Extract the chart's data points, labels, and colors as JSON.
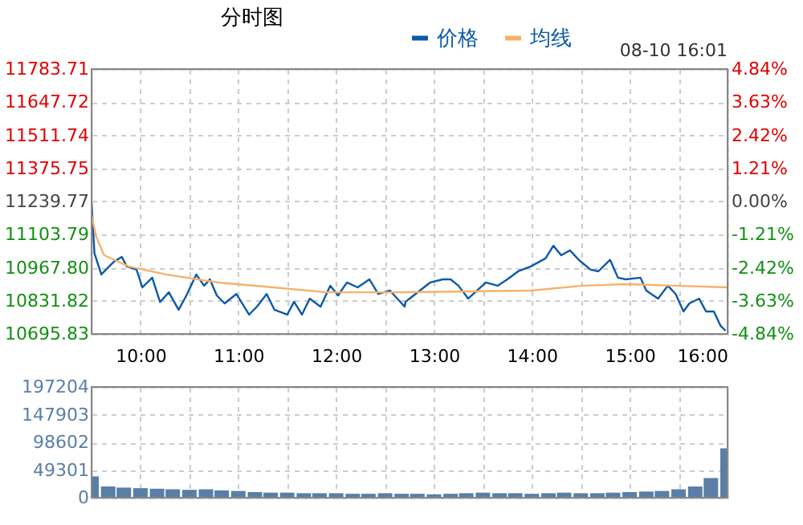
{
  "chart_data": [
    {
      "type": "line",
      "title": "分时图",
      "annotations": [
        "08-10 16:01"
      ],
      "legend": "top",
      "grid": true,
      "xlim": [
        9.5,
        16
      ],
      "xticks": [
        {
          "value": 10,
          "label": "10:00"
        },
        {
          "value": 10.5,
          "label": null
        },
        {
          "value": 11,
          "label": "11:00"
        },
        {
          "value": 11.5,
          "label": null
        },
        {
          "value": 12,
          "label": "12:00"
        },
        {
          "value": 12.5,
          "label": null
        },
        {
          "value": 13,
          "label": "13:00"
        },
        {
          "value": 13.5,
          "label": null
        },
        {
          "value": 14,
          "label": "14:00"
        },
        {
          "value": 14.5,
          "label": null
        },
        {
          "value": 15,
          "label": "15:00"
        },
        {
          "value": 15.5,
          "label": null
        },
        {
          "value": 16,
          "label": "16:00"
        }
      ],
      "ylim": [
        10695.83,
        11783.71
      ],
      "yticks": [
        {
          "value": 10695.83,
          "label": "10695.83"
        },
        {
          "value": 10831.82,
          "label": "10831.82"
        },
        {
          "value": 10967.8,
          "label": "10967.80"
        },
        {
          "value": 11103.79,
          "label": "11103.79"
        },
        {
          "value": 11239.77,
          "label": "11239.77"
        },
        {
          "value": 11375.75,
          "label": "11375.75"
        },
        {
          "value": 11511.74,
          "label": "11511.74"
        },
        {
          "value": 11647.72,
          "label": "11647.72"
        },
        {
          "value": 11783.71,
          "label": "11783.71"
        }
      ],
      "y2lim": [
        -4.84,
        4.84
      ],
      "y2ticks": [
        {
          "value": -4.84,
          "label": "-4.84%"
        },
        {
          "value": -3.63,
          "label": "-3.63%"
        },
        {
          "value": -2.42,
          "label": "-2.42%"
        },
        {
          "value": -1.21,
          "label": "-1.21%"
        },
        {
          "value": 0,
          "label": "0.00%"
        },
        {
          "value": 1.21,
          "label": "1.21%"
        },
        {
          "value": 2.42,
          "label": "2.42%"
        },
        {
          "value": 3.63,
          "label": "3.63%"
        },
        {
          "value": 4.84,
          "label": "4.84%"
        }
      ],
      "series": [
        {
          "name": "价格",
          "color": "#0d5aa7",
          "x": [
            9.5,
            9.53,
            9.6,
            9.68,
            9.73,
            9.81,
            9.86,
            9.96,
            10.02,
            10.12,
            10.2,
            10.29,
            10.39,
            10.47,
            10.57,
            10.65,
            10.71,
            10.78,
            10.86,
            10.98,
            11.11,
            11.19,
            11.29,
            11.37,
            11.5,
            11.57,
            11.65,
            11.73,
            11.84,
            11.94,
            12.02,
            12.11,
            12.22,
            12.34,
            12.43,
            12.55,
            12.7,
            12.71,
            12.96,
            13.09,
            13.17,
            13.25,
            13.35,
            13.53,
            13.65,
            13.75,
            13.86,
            13.99,
            14.14,
            14.22,
            14.3,
            14.39,
            14.48,
            14.6,
            14.68,
            14.8,
            14.88,
            14.96,
            15.11,
            15.17,
            15.29,
            15.39,
            15.47,
            15.55,
            15.61,
            15.71,
            15.78,
            15.86,
            15.93,
            15.98
          ],
          "values": [
            11236,
            11027,
            10940,
            10973,
            10993,
            11012,
            10973,
            10960,
            10887,
            10927,
            10827,
            10867,
            10795,
            10854,
            10940,
            10894,
            10920,
            10854,
            10821,
            10860,
            10775,
            10808,
            10860,
            10795,
            10775,
            10828,
            10775,
            10841,
            10808,
            10894,
            10854,
            10907,
            10887,
            10920,
            10860,
            10874,
            10808,
            10828,
            10907,
            10920,
            10920,
            10894,
            10841,
            10907,
            10894,
            10920,
            10953,
            10973,
            11006,
            11058,
            11019,
            11039,
            11000,
            10960,
            10953,
            11000,
            10927,
            10920,
            10927,
            10874,
            10841,
            10894,
            10860,
            10788,
            10821,
            10841,
            10788,
            10788,
            10729,
            10709
          ]
        },
        {
          "name": "均线",
          "color": "#f5b26b",
          "x": [
            9.5,
            9.55,
            9.63,
            9.88,
            10.26,
            10.8,
            11.36,
            11.9,
            12.71,
            13.99,
            14.52,
            14.96,
            15.45,
            16
          ],
          "values": [
            11184,
            11092,
            11019,
            10973,
            10940,
            10907,
            10887,
            10867,
            10867,
            10874,
            10894,
            10900,
            10894,
            10887
          ]
        }
      ]
    },
    {
      "type": "bar",
      "grid": true,
      "tick_labels": "y",
      "color": "#5a7ea6",
      "xlim": [
        9.5,
        16
      ],
      "xticks": [
        {
          "value": 10,
          "label": null
        },
        {
          "value": 10.5,
          "label": null
        },
        {
          "value": 11,
          "label": null
        },
        {
          "value": 11.5,
          "label": null
        },
        {
          "value": 12,
          "label": null
        },
        {
          "value": 12.5,
          "label": null
        },
        {
          "value": 13,
          "label": null
        },
        {
          "value": 13.5,
          "label": null
        },
        {
          "value": 14,
          "label": null
        },
        {
          "value": 14.5,
          "label": null
        },
        {
          "value": 15,
          "label": null
        },
        {
          "value": 15.5,
          "label": null
        }
      ],
      "ylim": [
        0,
        197204
      ],
      "yticks": [
        0,
        49301,
        98602,
        147903,
        197204
      ],
      "x": [
        9.5,
        9.67,
        9.83,
        10,
        10.17,
        10.33,
        10.5,
        10.67,
        10.83,
        11,
        11.17,
        11.33,
        11.5,
        11.67,
        11.83,
        12,
        12.17,
        12.33,
        12.5,
        12.67,
        12.83,
        13,
        13.17,
        13.33,
        13.5,
        13.67,
        13.83,
        14,
        14.17,
        14.33,
        14.5,
        14.67,
        14.83,
        15,
        15.17,
        15.33,
        15.5,
        15.67,
        15.83,
        16
      ],
      "values": [
        38000,
        20000,
        18000,
        17000,
        16000,
        15000,
        14000,
        15000,
        13000,
        12000,
        10000,
        9000,
        9000,
        8000,
        8000,
        8000,
        7000,
        7000,
        8000,
        7000,
        7000,
        6000,
        7000,
        8000,
        9000,
        8000,
        8000,
        7000,
        8000,
        9000,
        8000,
        8000,
        9000,
        10000,
        11000,
        12000,
        15000,
        20000,
        35000,
        88000
      ]
    }
  ]
}
